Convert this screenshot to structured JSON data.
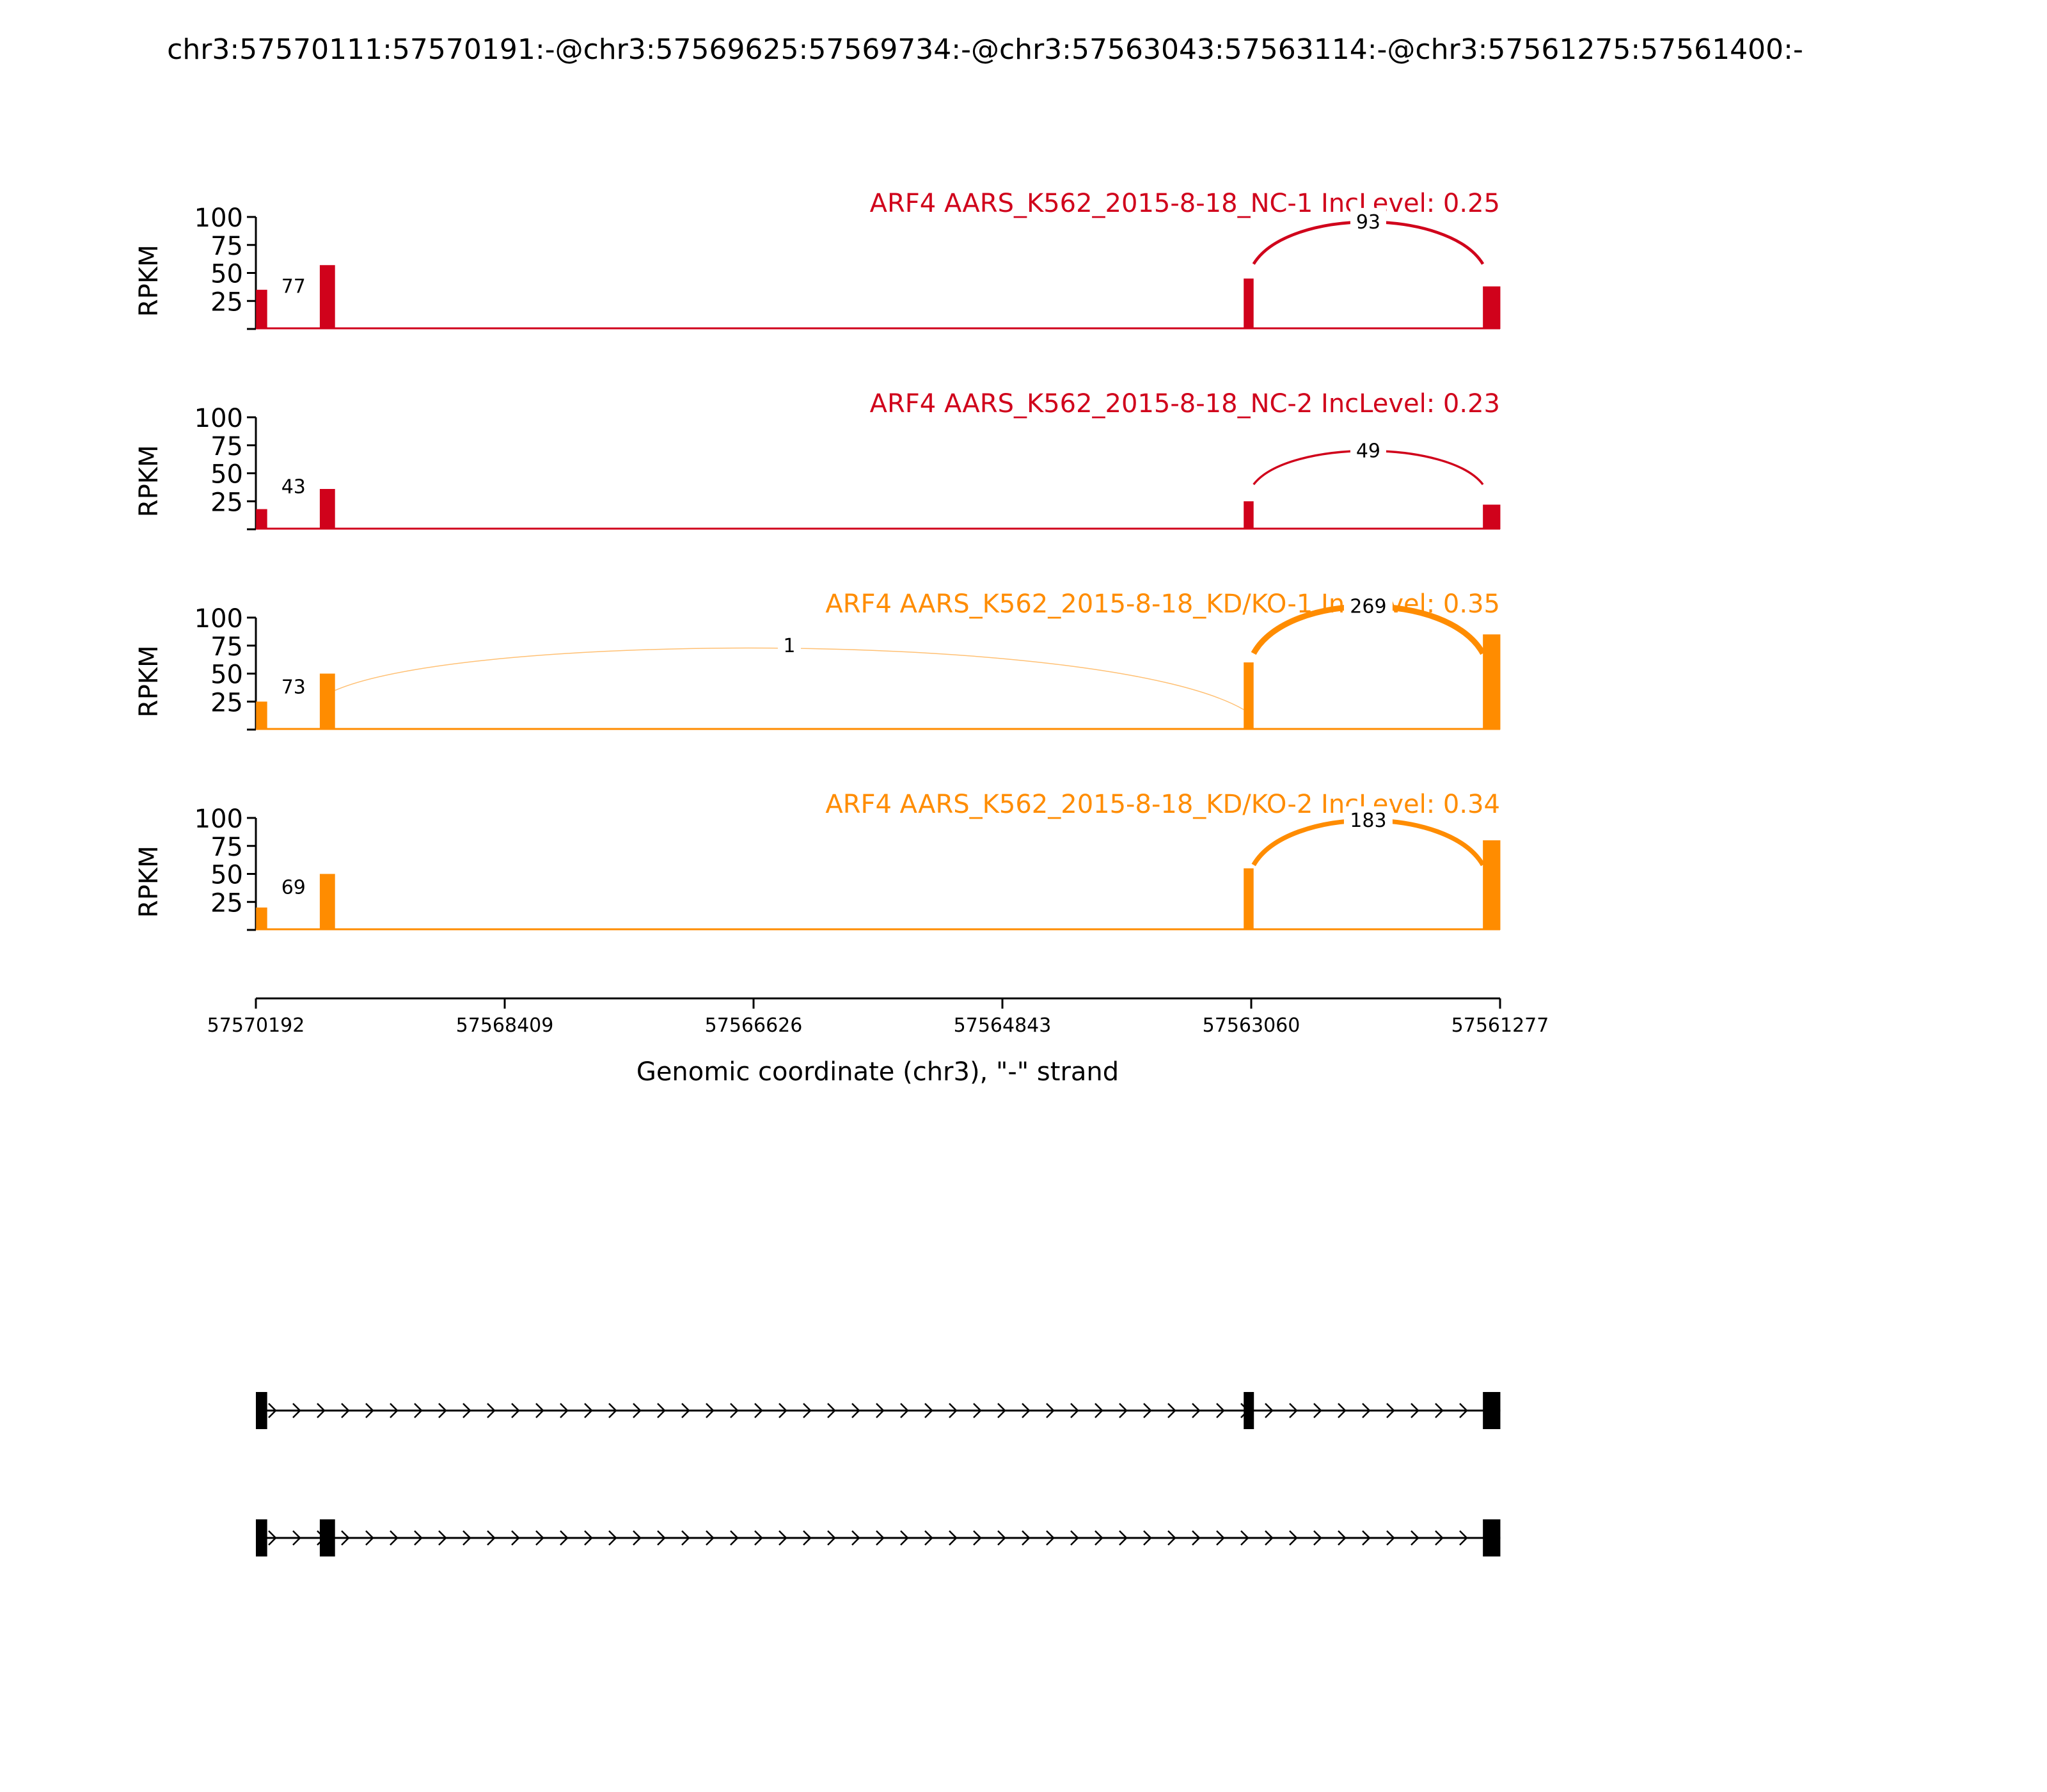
{
  "page_title": "chr3:57570111:57570191:-@chr3:57569625:57569734:-@chr3:57563043:57563114:-@chr3:57561275:57561400:-",
  "colors": {
    "nc": "#d0021b",
    "kd": "#ff8c00",
    "axis": "#000000"
  },
  "chart_data": {
    "type": "area",
    "subtype": "sashimi-plot",
    "xlabel": "Genomic coordinate (chr3), \"-\" strand",
    "ylabel": "RPKM",
    "xlim": [
      57570192,
      57561277
    ],
    "x_reversed": true,
    "x_ticks": [
      57570192,
      57568409,
      57566626,
      57564843,
      57563060,
      57561277
    ],
    "x_tick_labels": [
      "57570192",
      "57568409",
      "57566626",
      "57564843",
      "57563060",
      "57561277"
    ],
    "ylim": [
      0,
      100
    ],
    "y_ticks": [
      25,
      50,
      75,
      100
    ],
    "exons": [
      {
        "start": 57570191,
        "end": 57570111
      },
      {
        "start": 57569734,
        "end": 57569625
      },
      {
        "start": 57563114,
        "end": 57563043
      },
      {
        "start": 57561400,
        "end": 57561275
      }
    ],
    "tracks": [
      {
        "label": "ARF4 AARS_K562_2015-8-18_NC-1 IncLevel: 0.25",
        "color": "#d0021b",
        "exon_coverage": [
          35,
          57,
          45,
          38
        ],
        "junctions": [
          {
            "from": 57570111,
            "to": 57569734,
            "count": "77"
          },
          {
            "from": 57563043,
            "to": 57561400,
            "count": "93"
          }
        ]
      },
      {
        "label": "ARF4 AARS_K562_2015-8-18_NC-2 IncLevel: 0.23",
        "color": "#d0021b",
        "exon_coverage": [
          18,
          36,
          25,
          22
        ],
        "junctions": [
          {
            "from": 57570111,
            "to": 57569734,
            "count": "43"
          },
          {
            "from": 57563043,
            "to": 57561400,
            "count": "49"
          }
        ]
      },
      {
        "label": "ARF4 AARS_K562_2015-8-18_KD/KO-1 IncLevel: 0.35",
        "color": "#ff8c00",
        "exon_coverage": [
          25,
          50,
          60,
          85
        ],
        "junctions": [
          {
            "from": 57570111,
            "to": 57569734,
            "count": "73"
          },
          {
            "from": 57569625,
            "to": 57563114,
            "count": "1"
          },
          {
            "from": 57563043,
            "to": 57561400,
            "count": "269"
          }
        ]
      },
      {
        "label": "ARF4 AARS_K562_2015-8-18_KD/KO-2 IncLevel: 0.34",
        "color": "#ff8c00",
        "exon_coverage": [
          20,
          50,
          55,
          80
        ],
        "junctions": [
          {
            "from": 57570111,
            "to": 57569734,
            "count": "69"
          },
          {
            "from": 57563043,
            "to": 57561400,
            "count": "183"
          }
        ]
      }
    ],
    "isoforms": [
      {
        "exons": [
          [
            57570192,
            57570111
          ],
          [
            57563114,
            57563043
          ],
          [
            57561400,
            57561275
          ]
        ]
      },
      {
        "exons": [
          [
            57570192,
            57570111
          ],
          [
            57569734,
            57569625
          ],
          [
            57561400,
            57561275
          ]
        ]
      }
    ]
  }
}
